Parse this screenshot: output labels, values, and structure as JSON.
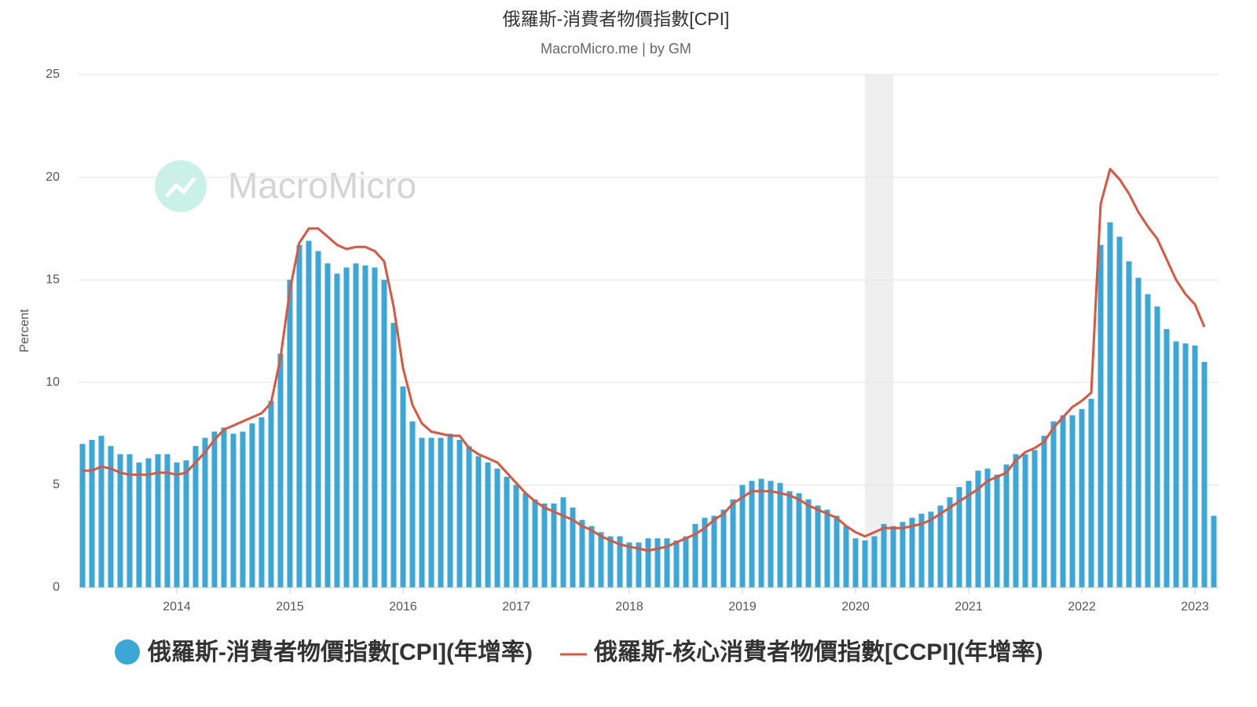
{
  "chart_data": {
    "type": "combo",
    "title": "俄羅斯-消費者物價指數[CPI]",
    "subtitle": "MacroMicro.me | by GM",
    "watermark": "MacroMicro",
    "y_label": "Percent",
    "x": [
      "2013-03",
      "2013-04",
      "2013-05",
      "2013-06",
      "2013-07",
      "2013-08",
      "2013-09",
      "2013-10",
      "2013-11",
      "2013-12",
      "2014-01",
      "2014-02",
      "2014-03",
      "2014-04",
      "2014-05",
      "2014-06",
      "2014-07",
      "2014-08",
      "2014-09",
      "2014-10",
      "2014-11",
      "2014-12",
      "2015-01",
      "2015-02",
      "2015-03",
      "2015-04",
      "2015-05",
      "2015-06",
      "2015-07",
      "2015-08",
      "2015-09",
      "2015-10",
      "2015-11",
      "2015-12",
      "2016-01",
      "2016-02",
      "2016-03",
      "2016-04",
      "2016-05",
      "2016-06",
      "2016-07",
      "2016-08",
      "2016-09",
      "2016-10",
      "2016-11",
      "2016-12",
      "2017-01",
      "2017-02",
      "2017-03",
      "2017-04",
      "2017-05",
      "2017-06",
      "2017-07",
      "2017-08",
      "2017-09",
      "2017-10",
      "2017-11",
      "2017-12",
      "2018-01",
      "2018-02",
      "2018-03",
      "2018-04",
      "2018-05",
      "2018-06",
      "2018-07",
      "2018-08",
      "2018-09",
      "2018-10",
      "2018-11",
      "2018-12",
      "2019-01",
      "2019-02",
      "2019-03",
      "2019-04",
      "2019-05",
      "2019-06",
      "2019-07",
      "2019-08",
      "2019-09",
      "2019-10",
      "2019-11",
      "2019-12",
      "2020-01",
      "2020-02",
      "2020-03",
      "2020-04",
      "2020-05",
      "2020-06",
      "2020-07",
      "2020-08",
      "2020-09",
      "2020-10",
      "2020-11",
      "2020-12",
      "2021-01",
      "2021-02",
      "2021-03",
      "2021-04",
      "2021-05",
      "2021-06",
      "2021-07",
      "2021-08",
      "2021-09",
      "2021-10",
      "2021-11",
      "2021-12",
      "2022-01",
      "2022-02",
      "2022-03",
      "2022-04",
      "2022-05",
      "2022-06",
      "2022-07",
      "2022-08",
      "2022-09",
      "2022-10",
      "2022-11",
      "2022-12",
      "2023-01",
      "2023-02",
      "2023-03"
    ],
    "series": [
      {
        "name": "俄羅斯-消費者物價指數[CPI](年增率)",
        "type": "bar",
        "color": "#3aa7d6",
        "values": [
          7.0,
          7.2,
          7.4,
          6.9,
          6.5,
          6.5,
          6.1,
          6.3,
          6.5,
          6.5,
          6.1,
          6.2,
          6.9,
          7.3,
          7.6,
          7.8,
          7.5,
          7.6,
          8.0,
          8.3,
          9.1,
          11.4,
          15.0,
          16.7,
          16.9,
          16.4,
          15.8,
          15.3,
          15.6,
          15.8,
          15.7,
          15.6,
          15.0,
          12.9,
          9.8,
          8.1,
          7.3,
          7.3,
          7.3,
          7.5,
          7.2,
          6.9,
          6.4,
          6.1,
          5.8,
          5.4,
          5.0,
          4.6,
          4.3,
          4.1,
          4.1,
          4.4,
          3.9,
          3.3,
          3.0,
          2.7,
          2.5,
          2.5,
          2.2,
          2.2,
          2.4,
          2.4,
          2.4,
          2.3,
          2.5,
          3.1,
          3.4,
          3.5,
          3.8,
          4.3,
          5.0,
          5.2,
          5.3,
          5.2,
          5.1,
          4.7,
          4.6,
          4.3,
          4.0,
          3.8,
          3.5,
          3.0,
          2.4,
          2.3,
          2.5,
          3.1,
          3.0,
          3.2,
          3.4,
          3.6,
          3.7,
          4.0,
          4.4,
          4.9,
          5.2,
          5.7,
          5.8,
          5.5,
          6.0,
          6.5,
          6.5,
          6.7,
          7.4,
          8.1,
          8.4,
          8.4,
          8.7,
          9.2,
          16.7,
          17.8,
          17.1,
          15.9,
          15.1,
          14.3,
          13.7,
          12.6,
          12.0,
          11.9,
          11.8,
          11.0,
          3.5
        ]
      },
      {
        "name": "俄羅斯-核心消費者物價指數[CCPI](年增率)",
        "type": "line",
        "color": "#d9573f",
        "values": [
          5.7,
          5.7,
          5.9,
          5.8,
          5.6,
          5.5,
          5.5,
          5.5,
          5.6,
          5.6,
          5.5,
          5.6,
          6.1,
          6.6,
          7.2,
          7.7,
          7.9,
          8.1,
          8.3,
          8.5,
          9.0,
          11.2,
          14.5,
          16.8,
          17.5,
          17.5,
          17.1,
          16.7,
          16.5,
          16.6,
          16.6,
          16.4,
          15.9,
          13.7,
          10.7,
          8.9,
          8.0,
          7.6,
          7.5,
          7.4,
          7.4,
          6.8,
          6.5,
          6.3,
          6.1,
          5.6,
          5.1,
          4.6,
          4.2,
          3.9,
          3.7,
          3.5,
          3.3,
          3.0,
          2.8,
          2.5,
          2.3,
          2.1,
          2.0,
          1.9,
          1.8,
          1.9,
          2.0,
          2.2,
          2.4,
          2.6,
          2.9,
          3.3,
          3.6,
          4.1,
          4.4,
          4.7,
          4.7,
          4.7,
          4.6,
          4.5,
          4.3,
          4.0,
          3.8,
          3.6,
          3.4,
          3.0,
          2.7,
          2.5,
          2.7,
          2.9,
          2.9,
          2.9,
          3.0,
          3.1,
          3.3,
          3.6,
          3.9,
          4.2,
          4.5,
          4.8,
          5.2,
          5.4,
          5.6,
          6.2,
          6.6,
          6.8,
          7.1,
          7.8,
          8.3,
          8.8,
          9.1,
          9.5,
          18.7,
          20.4,
          19.9,
          19.2,
          18.3,
          17.6,
          17.0,
          16.0,
          15.0,
          14.3,
          13.8,
          12.7,
          null
        ]
      }
    ],
    "xlim": [
      "2013-02",
      "2023-04"
    ],
    "xticks": [
      "2014",
      "2015",
      "2016",
      "2017",
      "2018",
      "2019",
      "2020",
      "2021",
      "2022",
      "2023"
    ],
    "ylim": [
      0,
      25
    ],
    "yticks": [
      0,
      5,
      10,
      15,
      20,
      25
    ],
    "shaded_regions": [
      [
        "2020-02",
        "2020-05"
      ]
    ],
    "grid": true,
    "legend": "bottom"
  }
}
